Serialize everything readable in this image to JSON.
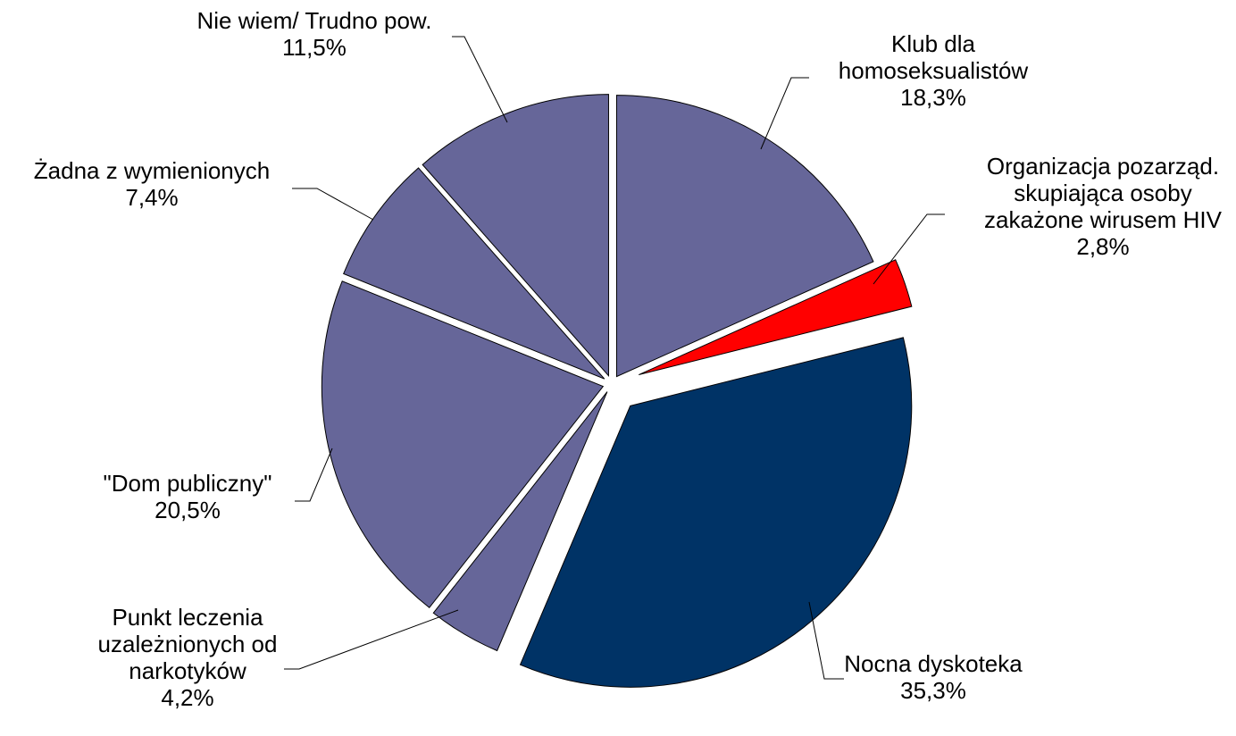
{
  "chart_data": {
    "type": "pie",
    "title": "",
    "slices": [
      {
        "name_lines": [
          "Klub dla",
          "homoseksualistów"
        ],
        "value": 18.3,
        "value_label": "18,3%",
        "color": "#666699",
        "exploded": false
      },
      {
        "name_lines": [
          "Organizacja pozarząd.",
          "skupiająca osoby",
          "zakażone wirusem HIV"
        ],
        "value": 2.8,
        "value_label": "2,8%",
        "color": "#ff0000",
        "exploded": true
      },
      {
        "name_lines": [
          "Nocna dyskoteka"
        ],
        "value": 35.3,
        "value_label": "35,3%",
        "color": "#003366",
        "exploded": true
      },
      {
        "name_lines": [
          "Punkt leczenia",
          "uzależnionych od",
          "narkotyków"
        ],
        "value": 4.2,
        "value_label": "4,2%",
        "color": "#666699",
        "exploded": false
      },
      {
        "name_lines": [
          "\"Dom publiczny\""
        ],
        "value": 20.5,
        "value_label": "20,5%",
        "color": "#666699",
        "exploded": false
      },
      {
        "name_lines": [
          "Żadna z wymienionych"
        ],
        "value": 7.4,
        "value_label": "7,4%",
        "color": "#666699",
        "exploded": false
      },
      {
        "name_lines": [
          "Nie wiem/ Trudno pow."
        ],
        "value": 11.5,
        "value_label": "11,5%",
        "color": "#666699",
        "exploded": false
      }
    ]
  }
}
